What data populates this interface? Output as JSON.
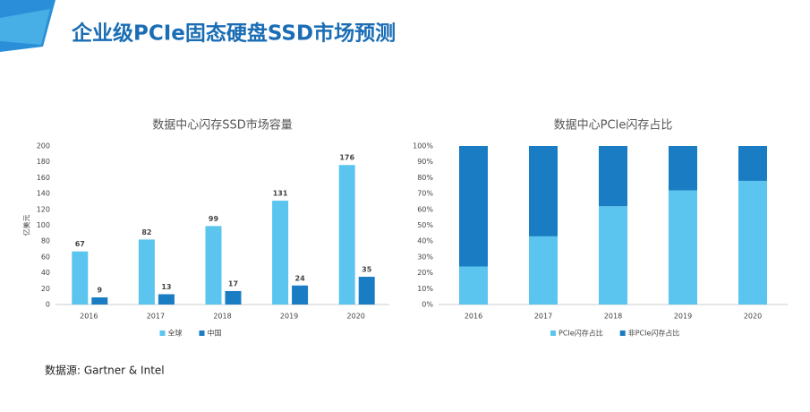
{
  "title": "企业级PCIe固态硬盘SSD市场预测",
  "source": "数据源: Gartner & Intel",
  "chart_data": [
    {
      "type": "bar",
      "title": "数据中心闪存SSD市场容量",
      "y_label": "亿美元",
      "categories": [
        "2016",
        "2017",
        "2018",
        "2019",
        "2020"
      ],
      "series": [
        {
          "name": "全球",
          "color": "#5bc5ef",
          "values": [
            67,
            82,
            99,
            131,
            176
          ]
        },
        {
          "name": "中国",
          "color": "#1a7cc2",
          "values": [
            9,
            13,
            17,
            24,
            35
          ]
        }
      ],
      "ylim": [
        0,
        200
      ],
      "yticks": [
        0,
        20,
        40,
        60,
        80,
        100,
        120,
        140,
        160,
        180,
        200
      ],
      "stacked": false,
      "data_labels": true,
      "legend": "bottom"
    },
    {
      "type": "bar",
      "title": "数据中心PCIe闪存占比",
      "categories": [
        "2016",
        "2017",
        "2018",
        "2019",
        "2020"
      ],
      "series": [
        {
          "name": "PCIe闪存占比",
          "color": "#5bc5ef",
          "values": [
            24,
            43,
            62,
            72,
            78
          ]
        },
        {
          "name": "非PCIe闪存占比",
          "color": "#1a7cc2",
          "values": [
            76,
            57,
            38,
            28,
            22
          ]
        }
      ],
      "ylim": [
        0,
        100
      ],
      "yticks": [
        {
          "value": 0,
          "label": "0%"
        },
        {
          "value": 10,
          "label": "10%"
        },
        {
          "value": 20,
          "label": "20%"
        },
        {
          "value": 30,
          "label": "30%"
        },
        {
          "value": 40,
          "label": "40%"
        },
        {
          "value": 50,
          "label": "50%"
        },
        {
          "value": 60,
          "label": "60%"
        },
        {
          "value": 70,
          "label": "70%"
        },
        {
          "value": 80,
          "label": "80%"
        },
        {
          "value": 90,
          "label": "90%"
        },
        {
          "value": 100,
          "label": "100%"
        }
      ],
      "stacked": true,
      "data_labels": false,
      "legend": "bottom"
    }
  ]
}
